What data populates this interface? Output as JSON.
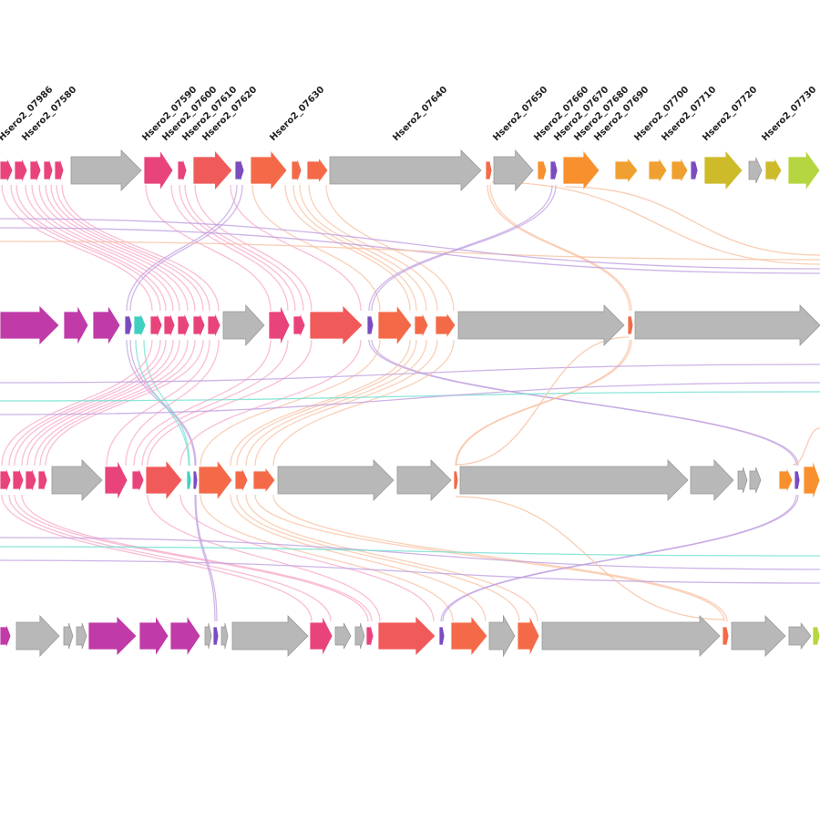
{
  "diagram": {
    "type": "gene-cluster-comparison",
    "gene_labels": [
      "Hsero2_07986",
      "Hsero2_07580",
      "Hsero2_07590",
      "Hsero2_07600",
      "Hsero2_07610",
      "Hsero2_07620",
      "Hsero2_07630",
      "Hsero2_07640",
      "Hsero2_07650",
      "Hsero2_07660",
      "Hsero2_07670",
      "Hsero2_07680",
      "Hsero2_07690",
      "Hsero2_07700",
      "Hsero2_07710",
      "Hsero2_07720",
      "Hsero2_07730"
    ],
    "colors": {
      "gray": "#b8b8b8",
      "pink": "#e8437a",
      "red": "#f05a5a",
      "orange_red": "#f46a48",
      "orange": "#f8902e",
      "amber": "#f0a030",
      "olive": "#cdbb2a",
      "lime": "#b5d640",
      "magenta": "#c03aa8",
      "purple": "#7a4cc0",
      "teal": "#40d0c0",
      "link_pink": "#f7a8c8",
      "link_purple": "#c0a0e0",
      "link_orange": "#f8c0a0",
      "link_teal": "#70e0d0"
    },
    "cluster_count": 4
  }
}
